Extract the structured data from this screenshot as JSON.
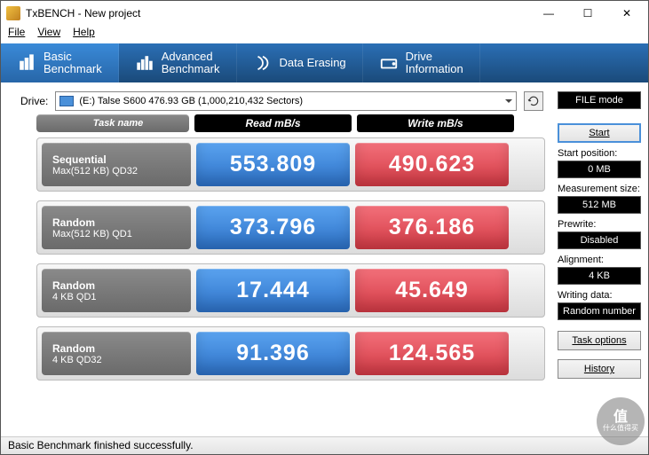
{
  "window": {
    "title": "TxBENCH - New project"
  },
  "menu": {
    "file": "File",
    "view": "View",
    "help": "Help"
  },
  "tabs": [
    {
      "label": "Basic\nBenchmark",
      "icon": "bar",
      "active": true
    },
    {
      "label": "Advanced\nBenchmark",
      "icon": "bars",
      "active": false
    },
    {
      "label": "Data Erasing",
      "icon": "erase",
      "active": false
    },
    {
      "label": "Drive\nInformation",
      "icon": "drive",
      "active": false
    }
  ],
  "drive": {
    "label": "Drive:",
    "selected": "(E:) Talse S600  476.93 GB (1,000,210,432 Sectors)"
  },
  "file_mode_btn": "FILE mode",
  "start_btn": "Start",
  "side": {
    "start_position_label": "Start position:",
    "start_position_value": "0 MB",
    "measurement_size_label": "Measurement size:",
    "measurement_size_value": "512 MB",
    "prewrite_label": "Prewrite:",
    "prewrite_value": "Disabled",
    "alignment_label": "Alignment:",
    "alignment_value": "4 KB",
    "writing_data_label": "Writing data:",
    "writing_data_value": "Random number",
    "task_options_btn": "Task options",
    "history_btn": "History"
  },
  "headers": {
    "task": "Task name",
    "read": "Read mB/s",
    "write": "Write mB/s"
  },
  "rows": [
    {
      "t1": "Sequential",
      "t2": "Max(512 KB) QD32",
      "read": "553.809",
      "write": "490.623"
    },
    {
      "t1": "Random",
      "t2": "Max(512 KB) QD1",
      "read": "373.796",
      "write": "376.186"
    },
    {
      "t1": "Random",
      "t2": "4 KB QD1",
      "read": "17.444",
      "write": "45.649"
    },
    {
      "t1": "Random",
      "t2": "4 KB QD32",
      "read": "91.396",
      "write": "124.565"
    }
  ],
  "status": "Basic Benchmark finished successfully.",
  "colors": {
    "read_bg": "#2d72c8",
    "write_bg": "#d43a45",
    "task_bg": "#6a6a6a",
    "tab_bg": "#1a4a7a",
    "tab_active_bg": "#2766a8"
  },
  "watermark": {
    "big": "值",
    "small": "什么值得买"
  }
}
